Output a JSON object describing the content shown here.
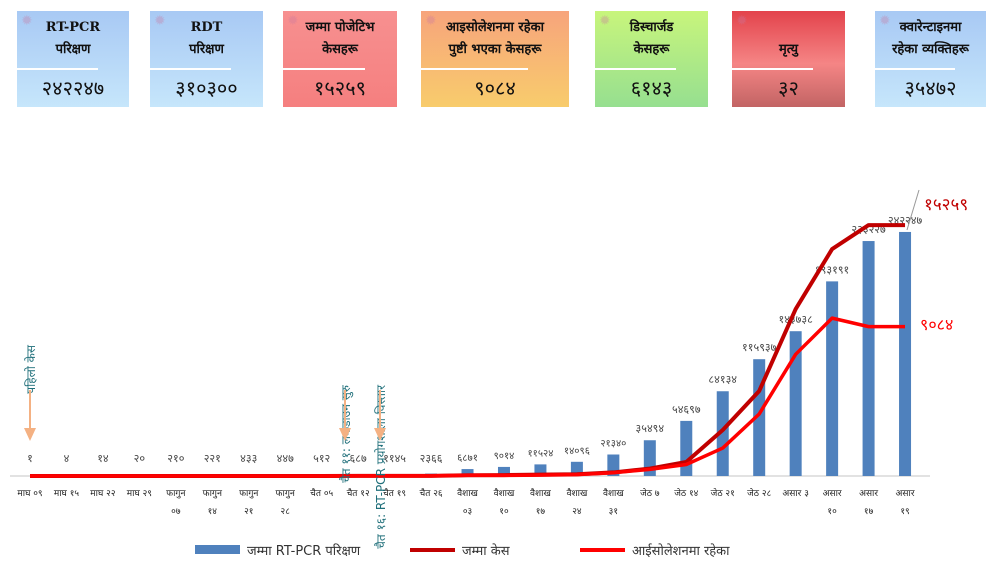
{
  "cards": [
    {
      "title1": "RT-PCR",
      "title2": "परिक्षण",
      "value": "२४२२४७",
      "bg": "linear-gradient(#a8c9f4,#c6e6fb)"
    },
    {
      "title1": "RDT",
      "title2": "परिक्षण",
      "value": "३१०३००",
      "bg": "linear-gradient(#a8c9f4,#c6e6fb)"
    },
    {
      "title1": "जम्मा पोजेटिभ",
      "title2": "केसहरू",
      "value": "१५२५९",
      "bg": "linear-gradient(#f79090,#f57f7f)"
    },
    {
      "title1": "आइसोलेशनमा रहेका",
      "title2": "पुष्टी भएका केसहरू",
      "value": "९०८४",
      "bg": "linear-gradient(#f7a47c,#f8cc6c)"
    },
    {
      "title1": "डिस्चार्जड",
      "title2": "केसहरू",
      "value": "६१४३",
      "bg": "linear-gradient(#c8f57c,#96df90)"
    },
    {
      "title1": "",
      "title2": "मृत्यु",
      "value": "३२",
      "bg": "linear-gradient(#e3434c,#f58585 55%,#c26464)"
    },
    {
      "title1": "क्वारेन्टाइनमा",
      "title2": "रहेका व्यक्तिहरू",
      "value": "३५४७२",
      "bg": "linear-gradient(#a8c9f4,#c6e6fb)"
    }
  ],
  "chart_data": {
    "type": "bar",
    "categories": [
      [
        "माघ ०९",
        ""
      ],
      [
        "माघ १५",
        ""
      ],
      [
        "माघ २२",
        ""
      ],
      [
        "माघ २९",
        ""
      ],
      [
        "फागुन",
        "०७"
      ],
      [
        "फागुन",
        "१४"
      ],
      [
        "फागुन",
        "२१"
      ],
      [
        "फागुन",
        "२८"
      ],
      [
        "चैत ०५",
        ""
      ],
      [
        "चैत १२",
        ""
      ],
      [
        "चैत १९",
        ""
      ],
      [
        "चैत २६",
        ""
      ],
      [
        "वैशाख",
        "०३"
      ],
      [
        "वैशाख",
        "१०"
      ],
      [
        "वैशाख",
        "१७"
      ],
      [
        "वैशाख",
        "२४"
      ],
      [
        "वैशाख",
        "३१"
      ],
      [
        "जेठ ७",
        ""
      ],
      [
        "जेठ १४",
        ""
      ],
      [
        "जेठ २१",
        ""
      ],
      [
        "जेठ २८",
        ""
      ],
      [
        "असार ३",
        ""
      ],
      [
        "असार",
        "१०"
      ],
      [
        "असार",
        "१७"
      ],
      [
        "असार",
        "१९"
      ]
    ],
    "series": [
      {
        "name": "जम्मा RT-PCR परिक्षण",
        "color": "#4f81bd",
        "values": [
          1,
          4,
          14,
          20,
          210,
          221,
          433,
          447,
          512,
          687,
          1145,
          2366,
          6871,
          9014,
          11524,
          14096,
          21340,
          35494,
          54697,
          84134,
          115937,
          143738,
          193191,
          233227,
          242247
        ],
        "labels": [
          "१",
          "४",
          "१४",
          "२०",
          "२१०",
          "२२१",
          "४३३",
          "४४७",
          "५१२",
          "६८७",
          "११४५",
          "२३६६",
          "६८७१",
          "९०१४",
          "११५२४",
          "१४०९६",
          "२१३४०",
          "३५४९४",
          "५४६९७",
          "८४१३४",
          "११५९३७",
          "१४३७३८",
          "१९३१९१",
          "२३३२२७",
          "२४२२४७"
        ]
      },
      {
        "name": "जम्मा केस",
        "color": "#c00000",
        "values": [
          1,
          1,
          1,
          1,
          1,
          1,
          1,
          1,
          1,
          5,
          9,
          9,
          49,
          57,
          82,
          110,
          217,
          450,
          850,
          2800,
          5170,
          10150,
          13800,
          15259,
          15259
        ],
        "end_label": "१५२५९"
      },
      {
        "name": "आईसोलेशनमा रहेका",
        "color": "#ff0000",
        "values": [
          1,
          1,
          1,
          1,
          1,
          1,
          1,
          1,
          1,
          5,
          9,
          9,
          48,
          40,
          50,
          80,
          200,
          400,
          700,
          1700,
          3770,
          7400,
          9600,
          9084,
          9084
        ],
        "end_label": "९०८४"
      }
    ],
    "annotations": [
      "पहिलो केस",
      "चैत ११: लकडाउन सुरु",
      "चैत १६: RT-PCR प्रयोगशाला विस्तार"
    ],
    "ylim_bars": [
      0,
      270000
    ],
    "ylim_lines": [
      0,
      16540
    ]
  }
}
